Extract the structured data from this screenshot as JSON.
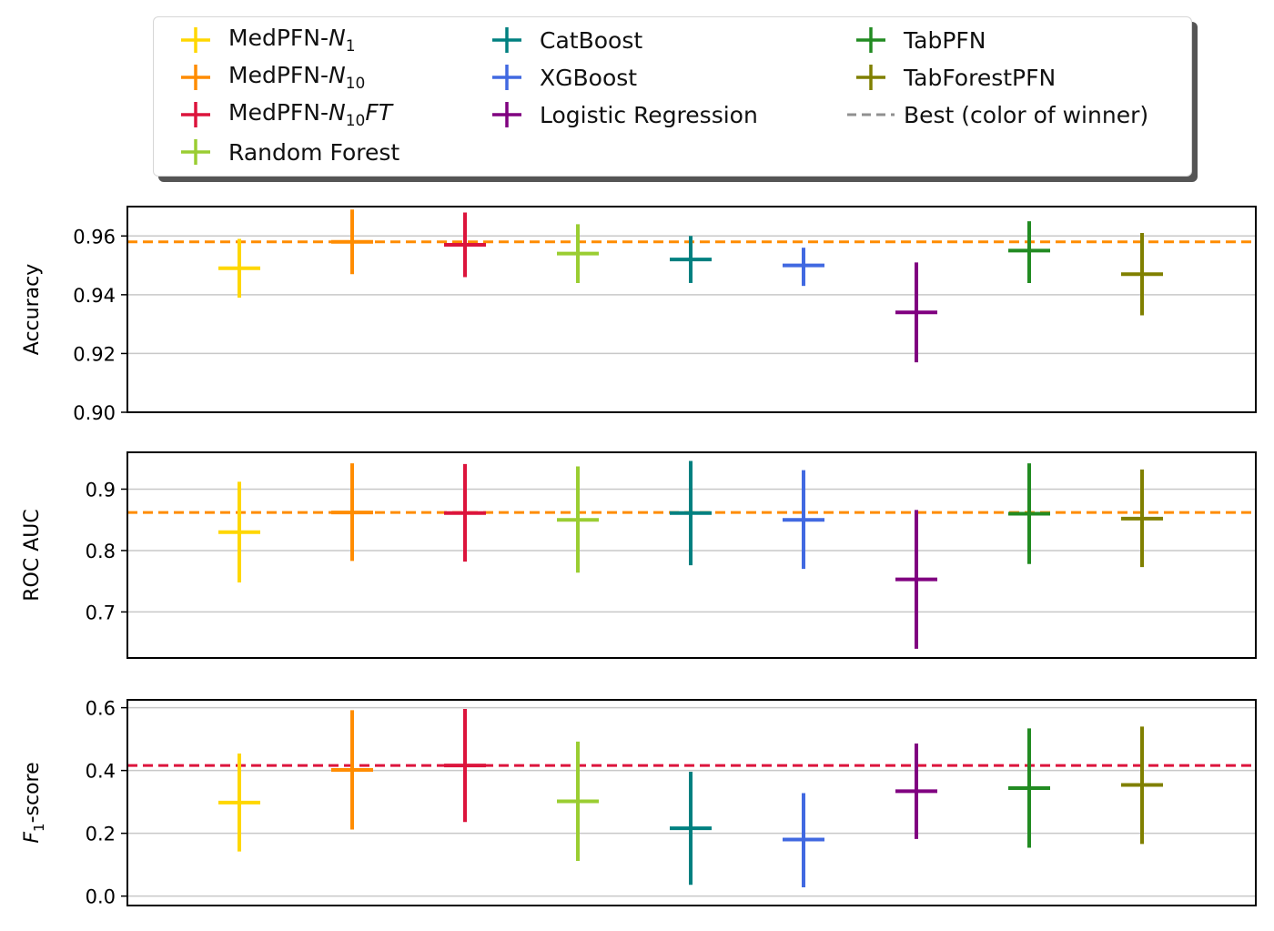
{
  "chart_data": [
    {
      "type": "errorbar",
      "ylabel": "Accuracy",
      "ylim": [
        0.9,
        0.97
      ],
      "yticks": [
        0.9,
        0.92,
        0.94,
        0.96
      ],
      "tick_labels": [
        "0.90",
        "0.92",
        "0.94",
        "0.96"
      ],
      "grid": true,
      "best": {
        "value": 0.958,
        "color": "#ff8c00"
      },
      "points": [
        {
          "series": 0,
          "mean": 0.949,
          "low": 0.939,
          "high": 0.959
        },
        {
          "series": 1,
          "mean": 0.958,
          "low": 0.947,
          "high": 0.969
        },
        {
          "series": 2,
          "mean": 0.957,
          "low": 0.946,
          "high": 0.968
        },
        {
          "series": 3,
          "mean": 0.954,
          "low": 0.944,
          "high": 0.964
        },
        {
          "series": 4,
          "mean": 0.952,
          "low": 0.944,
          "high": 0.96
        },
        {
          "series": 5,
          "mean": 0.95,
          "low": 0.943,
          "high": 0.956
        },
        {
          "series": 6,
          "mean": 0.934,
          "low": 0.917,
          "high": 0.951
        },
        {
          "series": 7,
          "mean": 0.955,
          "low": 0.944,
          "high": 0.965
        },
        {
          "series": 8,
          "mean": 0.947,
          "low": 0.933,
          "high": 0.961
        }
      ]
    },
    {
      "type": "errorbar",
      "ylabel": "ROC AUC",
      "ylim": [
        0.625,
        0.96
      ],
      "yticks": [
        0.7,
        0.8,
        0.9
      ],
      "tick_labels": [
        "0.7",
        "0.8",
        "0.9"
      ],
      "grid": true,
      "best": {
        "value": 0.862,
        "color": "#ff8c00"
      },
      "points": [
        {
          "series": 0,
          "mean": 0.83,
          "low": 0.748,
          "high": 0.912
        },
        {
          "series": 1,
          "mean": 0.862,
          "low": 0.783,
          "high": 0.942
        },
        {
          "series": 2,
          "mean": 0.861,
          "low": 0.782,
          "high": 0.941
        },
        {
          "series": 3,
          "mean": 0.85,
          "low": 0.764,
          "high": 0.937
        },
        {
          "series": 4,
          "mean": 0.861,
          "low": 0.776,
          "high": 0.946
        },
        {
          "series": 5,
          "mean": 0.85,
          "low": 0.77,
          "high": 0.931
        },
        {
          "series": 6,
          "mean": 0.753,
          "low": 0.64,
          "high": 0.866
        },
        {
          "series": 7,
          "mean": 0.86,
          "low": 0.778,
          "high": 0.942
        },
        {
          "series": 8,
          "mean": 0.852,
          "low": 0.773,
          "high": 0.932
        }
      ]
    },
    {
      "type": "errorbar",
      "ylabel": "F1-score",
      "ylabel_main": "F",
      "ylabel_sub": "1",
      "ylabel_rest": "-score",
      "ylim": [
        -0.03,
        0.625
      ],
      "yticks": [
        0.0,
        0.2,
        0.4,
        0.6
      ],
      "tick_labels": [
        "0.0",
        "0.2",
        "0.4",
        "0.6"
      ],
      "grid": true,
      "best": {
        "value": 0.416,
        "color": "#dc143c"
      },
      "points": [
        {
          "series": 0,
          "mean": 0.298,
          "low": 0.142,
          "high": 0.454
        },
        {
          "series": 1,
          "mean": 0.402,
          "low": 0.212,
          "high": 0.592
        },
        {
          "series": 2,
          "mean": 0.416,
          "low": 0.236,
          "high": 0.596
        },
        {
          "series": 3,
          "mean": 0.302,
          "low": 0.112,
          "high": 0.492
        },
        {
          "series": 4,
          "mean": 0.216,
          "low": 0.036,
          "high": 0.396
        },
        {
          "series": 5,
          "mean": 0.18,
          "low": 0.028,
          "high": 0.328
        },
        {
          "series": 6,
          "mean": 0.334,
          "low": 0.182,
          "high": 0.486
        },
        {
          "series": 7,
          "mean": 0.344,
          "low": 0.154,
          "high": 0.534
        },
        {
          "series": 8,
          "mean": 0.354,
          "low": 0.166,
          "high": 0.54
        }
      ]
    }
  ],
  "series": [
    {
      "name": "MedPFN-",
      "italic": "N",
      "sub": "1",
      "tail": "",
      "color": "#ffd700"
    },
    {
      "name": "MedPFN-",
      "italic": "N",
      "sub": "10",
      "tail": "",
      "color": "#ff8c00"
    },
    {
      "name": "MedPFN-",
      "italic": "N",
      "sub": "10",
      "tail": "FT",
      "color": "#dc143c"
    },
    {
      "name": "Random Forest",
      "italic": "",
      "sub": "",
      "tail": "",
      "color": "#9acd32"
    },
    {
      "name": "CatBoost",
      "italic": "",
      "sub": "",
      "tail": "",
      "color": "#008080"
    },
    {
      "name": "XGBoost",
      "italic": "",
      "sub": "",
      "tail": "",
      "color": "#4169e1"
    },
    {
      "name": "Logistic Regression",
      "italic": "",
      "sub": "",
      "tail": "",
      "color": "#800080"
    },
    {
      "name": "TabPFN",
      "italic": "",
      "sub": "",
      "tail": "",
      "color": "#228b22"
    },
    {
      "name": "TabForestPFN",
      "italic": "",
      "sub": "",
      "tail": "",
      "color": "#808000"
    }
  ],
  "legend_best": {
    "label": "Best (color of winner)",
    "color": "#909090"
  },
  "legend_placement": "top-center",
  "colors": {
    "grid": "#c8c8c8",
    "axis": "#000000"
  }
}
